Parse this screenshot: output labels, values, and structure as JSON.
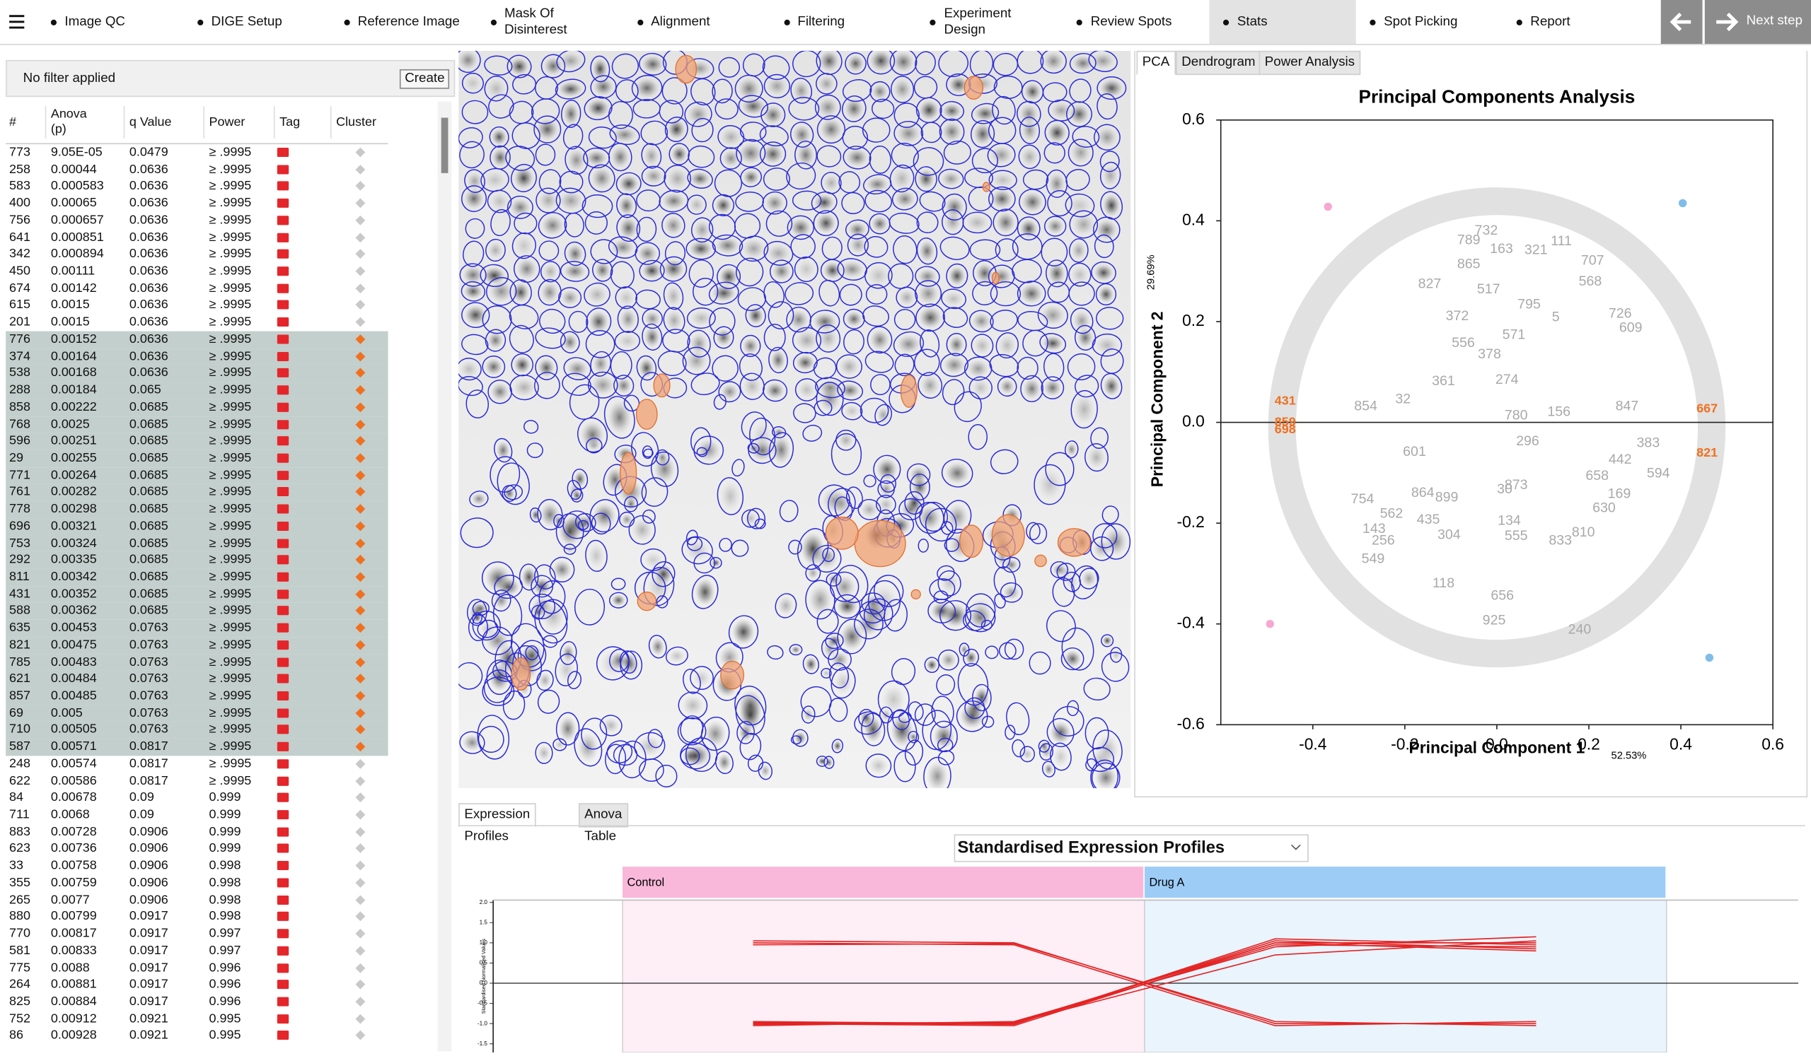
{
  "nav": {
    "steps": [
      "Image QC",
      "DIGE Setup",
      "Reference Image",
      "Mask Of Disinterest",
      "Alignment",
      "Filtering",
      "Experiment Design",
      "Review Spots",
      "Stats",
      "Spot Picking",
      "Report"
    ],
    "active": 8,
    "next": "Next step"
  },
  "filter": {
    "text": "No filter applied",
    "button": "Create"
  },
  "table": {
    "columns": [
      "#",
      "Anova (p)",
      "q Value",
      "Power",
      "Tag",
      "Cluster"
    ],
    "rows": [
      [
        "773",
        "9.05E-05",
        "0.0479",
        "≥ .9995"
      ],
      [
        "258",
        "0.00044",
        "0.0636",
        "≥ .9995"
      ],
      [
        "583",
        "0.000583",
        "0.0636",
        "≥ .9995"
      ],
      [
        "400",
        "0.00065",
        "0.0636",
        "≥ .9995"
      ],
      [
        "756",
        "0.000657",
        "0.0636",
        "≥ .9995"
      ],
      [
        "641",
        "0.000851",
        "0.0636",
        "≥ .9995"
      ],
      [
        "342",
        "0.000894",
        "0.0636",
        "≥ .9995"
      ],
      [
        "450",
        "0.00111",
        "0.0636",
        "≥ .9995"
      ],
      [
        "674",
        "0.00142",
        "0.0636",
        "≥ .9995"
      ],
      [
        "615",
        "0.0015",
        "0.0636",
        "≥ .9995"
      ],
      [
        "201",
        "0.0015",
        "0.0636",
        "≥ .9995"
      ],
      [
        "776",
        "0.00152",
        "0.0636",
        "≥ .9995"
      ],
      [
        "374",
        "0.00164",
        "0.0636",
        "≥ .9995"
      ],
      [
        "538",
        "0.00168",
        "0.0636",
        "≥ .9995"
      ],
      [
        "288",
        "0.00184",
        "0.065",
        "≥ .9995"
      ],
      [
        "858",
        "0.00222",
        "0.0685",
        "≥ .9995"
      ],
      [
        "768",
        "0.0025",
        "0.0685",
        "≥ .9995"
      ],
      [
        "596",
        "0.00251",
        "0.0685",
        "≥ .9995"
      ],
      [
        "29",
        "0.00255",
        "0.0685",
        "≥ .9995"
      ],
      [
        "771",
        "0.00264",
        "0.0685",
        "≥ .9995"
      ],
      [
        "761",
        "0.00282",
        "0.0685",
        "≥ .9995"
      ],
      [
        "778",
        "0.00298",
        "0.0685",
        "≥ .9995"
      ],
      [
        "696",
        "0.00321",
        "0.0685",
        "≥ .9995"
      ],
      [
        "753",
        "0.00324",
        "0.0685",
        "≥ .9995"
      ],
      [
        "292",
        "0.00335",
        "0.0685",
        "≥ .9995"
      ],
      [
        "811",
        "0.00342",
        "0.0685",
        "≥ .9995"
      ],
      [
        "431",
        "0.00352",
        "0.0685",
        "≥ .9995"
      ],
      [
        "588",
        "0.00362",
        "0.0685",
        "≥ .9995"
      ],
      [
        "635",
        "0.00453",
        "0.0763",
        "≥ .9995"
      ],
      [
        "821",
        "0.00475",
        "0.0763",
        "≥ .9995"
      ],
      [
        "785",
        "0.00483",
        "0.0763",
        "≥ .9995"
      ],
      [
        "621",
        "0.00484",
        "0.0763",
        "≥ .9995"
      ],
      [
        "857",
        "0.00485",
        "0.0763",
        "≥ .9995"
      ],
      [
        "69",
        "0.005",
        "0.0763",
        "≥ .9995"
      ],
      [
        "710",
        "0.00505",
        "0.0763",
        "≥ .9995"
      ],
      [
        "587",
        "0.00571",
        "0.0817",
        "≥ .9995"
      ],
      [
        "248",
        "0.00574",
        "0.0817",
        "≥ .9995"
      ],
      [
        "622",
        "0.00586",
        "0.0817",
        "≥ .9995"
      ],
      [
        "84",
        "0.00678",
        "0.09",
        "0.999"
      ],
      [
        "711",
        "0.0068",
        "0.09",
        "0.999"
      ],
      [
        "883",
        "0.00728",
        "0.0906",
        "0.999"
      ],
      [
        "623",
        "0.00736",
        "0.0906",
        "0.999"
      ],
      [
        "33",
        "0.00758",
        "0.0906",
        "0.998"
      ],
      [
        "355",
        "0.00759",
        "0.0906",
        "0.998"
      ],
      [
        "265",
        "0.0077",
        "0.0906",
        "0.998"
      ],
      [
        "880",
        "0.00799",
        "0.0917",
        "0.998"
      ],
      [
        "770",
        "0.00817",
        "0.0917",
        "0.997"
      ],
      [
        "581",
        "0.00833",
        "0.0917",
        "0.997"
      ],
      [
        "775",
        "0.0088",
        "0.0917",
        "0.996"
      ],
      [
        "264",
        "0.00881",
        "0.0917",
        "0.996"
      ],
      [
        "825",
        "0.00884",
        "0.0917",
        "0.996"
      ],
      [
        "752",
        "0.00912",
        "0.0921",
        "0.995"
      ],
      [
        "86",
        "0.00928",
        "0.0921",
        "0.995"
      ]
    ],
    "highlighted": [
      11,
      12,
      13,
      14,
      15,
      16,
      17,
      18,
      19,
      20,
      21,
      22,
      23,
      24,
      25,
      26,
      27,
      28,
      29,
      30,
      31,
      32,
      33,
      34,
      35
    ]
  },
  "pca_tabs": [
    "PCA",
    "Dendrogram",
    "Power Analysis"
  ],
  "bottom_tabs": [
    "Expression Profiles",
    "Anova Table"
  ],
  "chart_data": [
    {
      "type": "scatter",
      "title": "Principal Components Analysis",
      "x_label": "Principal Component 1",
      "y_label": "Principal Component 2",
      "x_variance": "52.53%",
      "y_variance": "29.69%",
      "xlim": [
        -0.6,
        0.6
      ],
      "ylim": [
        -0.6,
        0.6
      ],
      "xticks": [
        -0.4,
        -0.2,
        {
          "value": 0,
          "label": "0.0"
        },
        0.2,
        0.4,
        0.6
      ],
      "yticks": [
        0.6,
        0.4,
        0.2,
        {
          "value": 0,
          "label": "0.0"
        },
        -0.2,
        -0.4,
        -0.6
      ],
      "series": [
        {
          "color": "#a9a9a9",
          "x": [
            -0.061,
            -0.016,
            0.037,
            0.022,
            -0.116,
            -0.073,
            0.042,
            0.135,
            0.067,
            -0.179,
            0.017,
            0.027,
            0.042,
            -0.149,
            0.128,
            0.07,
            -0.018,
            -0.086,
            -0.146,
            -0.023,
            0.14,
            0.085,
            0.01,
            -0.061,
            0.218,
            0.233,
            0.266,
            0.268,
            0.283,
            0.329,
            0.351,
            0.291,
            0.268,
            0.208,
            0.203,
            -0.109,
            -0.161,
            -0.229,
            -0.292,
            -0.267,
            -0.247,
            -0.104,
            0.138,
            0.188,
            -0.116,
            0.012,
            -0.006,
            0.18,
            -0.269,
            -0.204,
            -0.285,
            0.042
          ],
          "y": [
            0.313,
            0.134,
            0.173,
            0.084,
            0.081,
            0.157,
            0.013,
            0.02,
            -0.038,
            -0.059,
            -0.134,
            -0.196,
            -0.226,
            -0.194,
            0.208,
            0.233,
            0.263,
            0.21,
            0.274,
            0.38,
            0.359,
            0.341,
            0.343,
            0.361,
            -0.107,
            -0.171,
            -0.143,
            -0.075,
            0.031,
            -0.042,
            -0.102,
            0.187,
            0.215,
            0.32,
            0.279,
            -0.15,
            -0.141,
            -0.182,
            -0.153,
            -0.212,
            -0.235,
            -0.224,
            -0.235,
            -0.219,
            -0.32,
            -0.345,
            -0.394,
            -0.412,
            -0.272,
            0.045,
            0.031,
            -0.125
          ],
          "labels": [
            "865",
            "378",
            "571",
            "274",
            "361",
            "556",
            "780",
            "156",
            "296",
            "601",
            "30",
            "134",
            "555",
            "435",
            "5",
            "795",
            "517",
            "372",
            "827",
            "732",
            "111",
            "321",
            "163",
            "789",
            "658",
            "630",
            "169",
            "442",
            "847",
            "383",
            "594",
            "609",
            "726",
            "707",
            "568",
            "899",
            "864",
            "562",
            "754",
            "143",
            "256",
            "304",
            "833",
            "810",
            "118",
            "656",
            "925",
            "240",
            "549",
            "32",
            "854",
            "873"
          ]
        },
        {
          "color": "#f07020",
          "x": [
            -0.46,
            -0.46,
            -0.46,
            0.457,
            0.457
          ],
          "y": [
            0.042,
            0.0,
            -0.015,
            0.026,
            -0.061
          ],
          "labels": [
            "431",
            "859",
            "698",
            "667",
            "821"
          ]
        },
        {
          "color": "#f7a8d0",
          "x": [
            -0.367,
            -0.493
          ],
          "y": [
            0.428,
            -0.4
          ]
        },
        {
          "color": "#7fbde8",
          "x": [
            0.404,
            0.462
          ],
          "y": [
            0.435,
            -0.467
          ]
        }
      ]
    },
    {
      "type": "line",
      "title": "Standardised Expression Profiles",
      "y_label": "Standardised Normalised Values",
      "groups": [
        {
          "name": "Control",
          "color": "#f9b8da"
        },
        {
          "name": "Drug A",
          "color": "#9dcdf7"
        }
      ],
      "categories": [
        null,
        null,
        null,
        null
      ],
      "ylim": [
        -1.7,
        2.0
      ],
      "yticks": [
        {
          "value": 2,
          "label": "2.0"
        },
        1.5,
        {
          "value": 1,
          "label": "1.0"
        },
        0.5,
        {
          "value": 0,
          "label": "0.0"
        },
        -0.5,
        {
          "value": -1,
          "label": "-1.0"
        },
        -1.5
      ],
      "series": [
        {
          "color": "#e32424",
          "values": [
            -0.95,
            -1.0,
            1.05,
            0.85
          ]
        },
        {
          "color": "#e32424",
          "values": [
            -1.0,
            -1.05,
            1.0,
            1.0
          ]
        },
        {
          "color": "#e32424",
          "values": [
            -1.05,
            -0.95,
            0.9,
            1.15
          ]
        },
        {
          "color": "#e32424",
          "values": [
            -0.98,
            -1.02,
            1.1,
            0.95
          ]
        },
        {
          "color": "#e32424",
          "values": [
            -1.02,
            -0.98,
            0.7,
            1.05
          ]
        },
        {
          "color": "#e32424",
          "values": [
            -0.97,
            -1.0,
            0.95,
            0.9
          ]
        },
        {
          "color": "#e32424",
          "values": [
            -1.0,
            -0.97,
            1.0,
            0.8
          ]
        },
        {
          "color": "#e32424",
          "values": [
            1.05,
            1.0,
            -1.0,
            -1.0
          ]
        },
        {
          "color": "#e32424",
          "values": [
            1.0,
            0.95,
            -1.05,
            -0.95
          ]
        },
        {
          "color": "#e32424",
          "values": [
            0.95,
            0.98,
            -0.95,
            -1.05
          ]
        }
      ]
    }
  ]
}
